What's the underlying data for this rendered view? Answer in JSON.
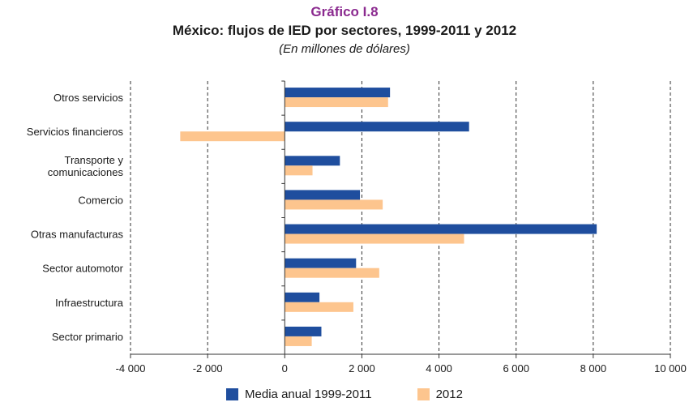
{
  "figure_label": "Gráfico I.8",
  "title": "México: flujos de IED por sectores, 1999-2011 y 2012",
  "subtitle": "(En millones de dólares)",
  "chart_data": {
    "type": "bar",
    "orientation": "horizontal",
    "categories": [
      "Otros servicios",
      "Servicios financieros",
      "Transporte y\ncomunicaciones",
      "Comercio",
      "Otras manufacturas",
      "Sector automotor",
      "Infraestructura",
      "Sector primario"
    ],
    "series": [
      {
        "name": "Media anual 1999-2011",
        "color": "#1f4e9e",
        "values": [
          2730,
          4780,
          1430,
          1950,
          8090,
          1850,
          900,
          950
        ]
      },
      {
        "name": "2012",
        "color": "#fdc58e",
        "values": [
          2680,
          -2710,
          720,
          2540,
          4650,
          2450,
          1780,
          700
        ]
      }
    ],
    "xlim": [
      -4000,
      10000
    ],
    "xticks": [
      -4000,
      -2000,
      0,
      2000,
      4000,
      6000,
      8000,
      10000
    ],
    "xtick_labels": [
      "-4 000",
      "-2 000",
      "0",
      "2 000",
      "4 000",
      "6 000",
      "8 000",
      "10 000"
    ],
    "grid": "vertical dashed",
    "legend_position": "bottom"
  }
}
